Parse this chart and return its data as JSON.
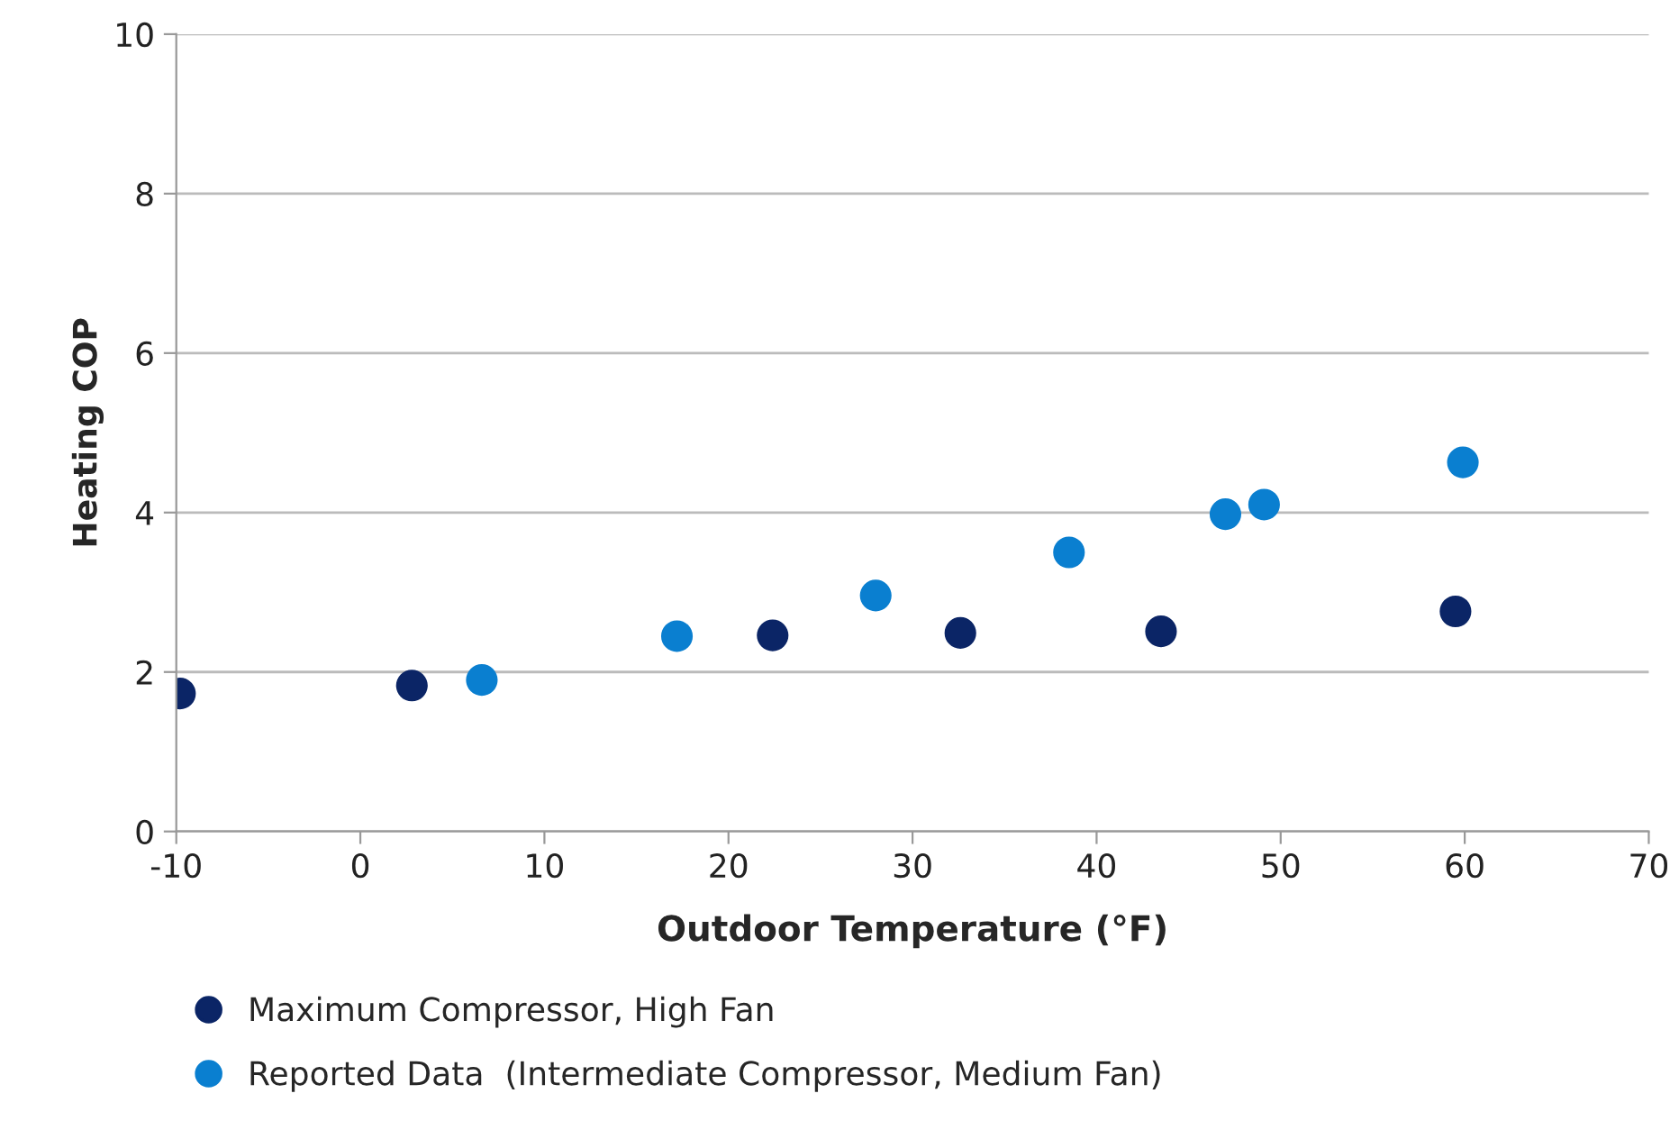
{
  "chart_data": {
    "type": "scatter",
    "xlabel": "Outdoor Temperature (°F)",
    "ylabel": "Heating COP",
    "xlim": [
      -10,
      70
    ],
    "xticks": [
      -10,
      0,
      10,
      20,
      30,
      40,
      50,
      60,
      70
    ],
    "ylim": [
      0,
      10
    ],
    "yticks": [
      0,
      2,
      4,
      6,
      8,
      10
    ],
    "grid": "y",
    "legend": "bottom",
    "marker": "circle",
    "series": [
      {
        "name": "Maximum Compressor, High Fan",
        "color": "#0b2566",
        "x": [
          -9.8,
          2.8,
          22.4,
          32.6,
          43.5,
          59.5
        ],
        "values": [
          1.73,
          1.83,
          2.46,
          2.49,
          2.51,
          2.76
        ]
      },
      {
        "name": "Reported Data  (Intermediate Compressor, Medium Fan)",
        "color": "#0a7fd0",
        "x": [
          6.6,
          17.2,
          28.0,
          38.5,
          47.0,
          49.1,
          59.9
        ],
        "values": [
          1.9,
          2.45,
          2.96,
          3.5,
          3.98,
          4.1,
          4.63
        ]
      }
    ]
  }
}
